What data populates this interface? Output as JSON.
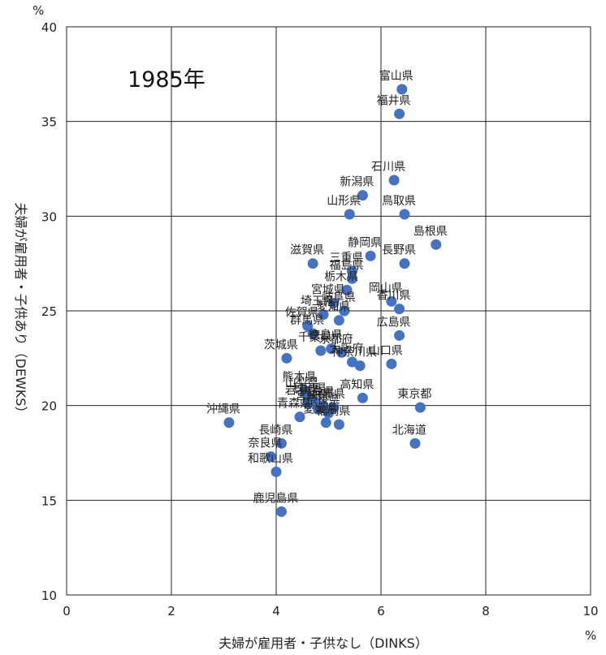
{
  "chart_data": {
    "type": "scatter",
    "title": "1985年",
    "xlabel": "夫婦が雇用者・子供なし（DINKS）",
    "ylabel": "夫婦が雇用者・子供あり（DEWKS）",
    "x_unit": "%",
    "y_unit": "%",
    "xlim": [
      0,
      10
    ],
    "ylim": [
      10,
      40
    ],
    "xticks": [
      0,
      2,
      4,
      6,
      8,
      10
    ],
    "yticks": [
      10,
      15,
      20,
      25,
      30,
      35,
      40
    ],
    "grid": true,
    "marker_color": "#4472C4",
    "points": [
      {
        "name": "富山県",
        "x": 6.4,
        "y": 36.7
      },
      {
        "name": "福井県",
        "x": 6.35,
        "y": 35.4
      },
      {
        "name": "石川県",
        "x": 6.25,
        "y": 31.9
      },
      {
        "name": "新潟県",
        "x": 5.65,
        "y": 31.1
      },
      {
        "name": "鳥取県",
        "x": 6.45,
        "y": 30.1
      },
      {
        "name": "山形県",
        "x": 5.4,
        "y": 30.1
      },
      {
        "name": "島根県",
        "x": 7.05,
        "y": 28.5
      },
      {
        "name": "静岡県",
        "x": 5.8,
        "y": 27.9
      },
      {
        "name": "長野県",
        "x": 6.45,
        "y": 27.5
      },
      {
        "name": "滋賀県",
        "x": 4.7,
        "y": 27.5
      },
      {
        "name": "三重県",
        "x": 5.45,
        "y": 27.1
      },
      {
        "name": "福島県",
        "x": 5.45,
        "y": 26.7
      },
      {
        "name": "栃木県",
        "x": 5.35,
        "y": 26.1
      },
      {
        "name": "岡山県",
        "x": 6.2,
        "y": 25.5
      },
      {
        "name": "香川県",
        "x": 6.35,
        "y": 25.1
      },
      {
        "name": "宮城県",
        "x": 5.1,
        "y": 25.4
      },
      {
        "name": "岐阜県",
        "x": 5.3,
        "y": 25.0
      },
      {
        "name": "埼玉県",
        "x": 4.9,
        "y": 24.8
      },
      {
        "name": "愛知県",
        "x": 5.2,
        "y": 24.5
      },
      {
        "name": "佐賀県",
        "x": 4.6,
        "y": 24.2
      },
      {
        "name": "広島県",
        "x": 6.35,
        "y": 23.7
      },
      {
        "name": "群馬県",
        "x": 4.7,
        "y": 23.8
      },
      {
        "name": "千葉県",
        "x": 4.85,
        "y": 22.9
      },
      {
        "name": "徳島県",
        "x": 5.05,
        "y": 23.0
      },
      {
        "name": "京都府",
        "x": 5.25,
        "y": 22.8
      },
      {
        "name": "大阪府",
        "x": 5.45,
        "y": 22.3
      },
      {
        "name": "神奈川県",
        "x": 5.6,
        "y": 22.1
      },
      {
        "name": "山口県",
        "x": 6.2,
        "y": 22.2
      },
      {
        "name": "茨城県",
        "x": 4.2,
        "y": 22.5
      },
      {
        "name": "熊本県",
        "x": 4.55,
        "y": 20.8
      },
      {
        "name": "山梨県",
        "x": 4.6,
        "y": 20.5
      },
      {
        "name": "高知県",
        "x": 5.65,
        "y": 20.4
      },
      {
        "name": "東京都",
        "x": 6.75,
        "y": 19.9
      },
      {
        "name": "岩手県",
        "x": 4.6,
        "y": 20.1
      },
      {
        "name": "秋田県",
        "x": 4.75,
        "y": 20.2
      },
      {
        "name": "大分県",
        "x": 4.9,
        "y": 20.0
      },
      {
        "name": "宮崎県",
        "x": 4.8,
        "y": 19.8
      },
      {
        "name": "奈良県",
        "x": 5.0,
        "y": 19.6
      },
      {
        "name": "兵庫県",
        "x": 5.1,
        "y": 19.9
      },
      {
        "name": "青森県",
        "x": 4.45,
        "y": 19.4
      },
      {
        "name": "愛媛県",
        "x": 4.95,
        "y": 19.1
      },
      {
        "name": "福岡県",
        "x": 5.2,
        "y": 19.0
      },
      {
        "name": "沖縄県",
        "x": 3.1,
        "y": 19.1
      },
      {
        "name": "北海道",
        "x": 6.65,
        "y": 18.0
      },
      {
        "name": "長崎県",
        "x": 4.1,
        "y": 18.0
      },
      {
        "name": "奈良県",
        "x": 3.9,
        "y": 17.3
      },
      {
        "name": "和歌山県",
        "x": 4.0,
        "y": 16.5
      },
      {
        "name": "鹿児島県",
        "x": 4.1,
        "y": 14.4
      }
    ]
  }
}
